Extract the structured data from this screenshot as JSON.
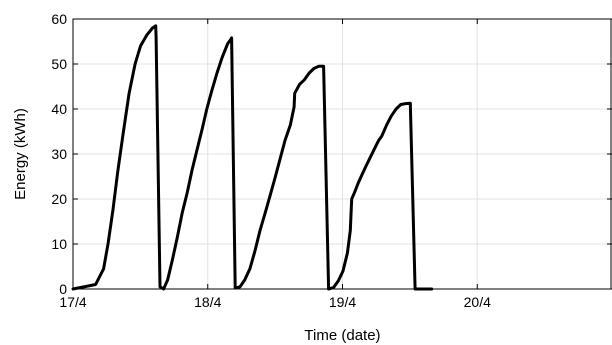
{
  "chart_data": {
    "type": "line",
    "title": "",
    "xlabel": "Time (date)",
    "ylabel": "Energy (kWh)",
    "x_unit": "days from 17/4 00:00",
    "xlim": [
      0,
      4
    ],
    "ylim": [
      0,
      60
    ],
    "grid": true,
    "legend": "none",
    "x_ticks": [
      {
        "value": 0,
        "label": "17/4"
      },
      {
        "value": 1,
        "label": "18/4"
      },
      {
        "value": 2,
        "label": "19/4"
      },
      {
        "value": 3,
        "label": "20/4"
      }
    ],
    "y_ticks": [
      {
        "value": 0,
        "label": "0"
      },
      {
        "value": 10,
        "label": "10"
      },
      {
        "value": 20,
        "label": "20"
      },
      {
        "value": 30,
        "label": "30"
      },
      {
        "value": 40,
        "label": "40"
      },
      {
        "value": 50,
        "label": "50"
      },
      {
        "value": 60,
        "label": "60"
      }
    ],
    "series": [
      {
        "color": "#000000",
        "x": [
          0.0,
          0.168,
          0.227,
          0.26,
          0.296,
          0.332,
          0.372,
          0.416,
          0.461,
          0.501,
          0.549,
          0.59,
          0.614,
          0.617,
          0.646,
          0.672,
          0.702,
          0.738,
          0.774,
          0.811,
          0.848,
          0.884,
          0.921,
          0.958,
          0.993,
          1.029,
          1.069,
          1.107,
          1.147,
          1.172,
          1.177,
          1.204,
          1.239,
          1.274,
          1.313,
          1.351,
          1.388,
          1.427,
          1.465,
          1.502,
          1.538,
          1.573,
          1.613,
          1.641,
          1.645,
          1.682,
          1.717,
          1.753,
          1.788,
          1.824,
          1.86,
          1.897,
          1.933,
          1.969,
          2.004,
          2.036,
          2.058,
          2.068,
          2.09,
          2.116,
          2.146,
          2.177,
          2.21,
          2.243,
          2.268,
          2.292,
          2.328,
          2.363,
          2.398,
          2.433,
          2.468,
          2.503,
          2.539,
          2.575,
          2.6,
          2.624,
          2.651,
          2.662
        ],
        "y": [
          0.0,
          1.0,
          4.5,
          10.0,
          17.5,
          26.0,
          34.5,
          43.5,
          50.0,
          54.0,
          56.5,
          58.0,
          58.5,
          56.0,
          0.5,
          0.0,
          2.0,
          6.5,
          11.5,
          17.0,
          21.5,
          26.5,
          31.0,
          35.5,
          40.0,
          44.0,
          48.0,
          51.5,
          54.5,
          55.5,
          55.8,
          0.2,
          0.5,
          2.0,
          4.5,
          8.5,
          13.0,
          17.0,
          21.0,
          25.0,
          29.0,
          33.0,
          36.5,
          40.5,
          43.5,
          45.5,
          46.5,
          48.0,
          49.0,
          49.5,
          49.5,
          0.0,
          0.3,
          1.8,
          4.0,
          8.0,
          13.0,
          20.0,
          21.5,
          23.5,
          25.5,
          27.5,
          29.5,
          31.5,
          33.0,
          34.0,
          36.5,
          38.5,
          40.0,
          41.0,
          41.2,
          41.3,
          0.0,
          0.0,
          0.0,
          0.0,
          0.0,
          0.0
        ]
      }
    ]
  }
}
